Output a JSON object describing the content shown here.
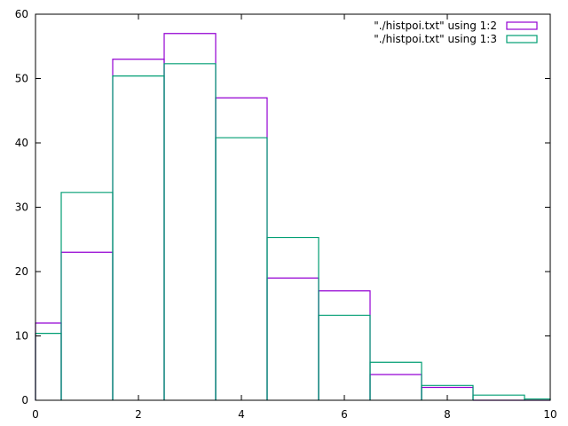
{
  "chart_data": {
    "type": "bar",
    "style": "histogram-steps",
    "xlim": [
      0,
      10
    ],
    "ylim": [
      0,
      60
    ],
    "xticks": [
      0,
      2,
      4,
      6,
      8,
      10
    ],
    "yticks": [
      0,
      10,
      20,
      30,
      40,
      50,
      60
    ],
    "categories": [
      0,
      1,
      2,
      3,
      4,
      5,
      6,
      7,
      8,
      9,
      10
    ],
    "bin_width": 1,
    "grid": false,
    "legend_position": "top-right",
    "series": [
      {
        "name": "\"./histpoi.txt\" using 1:2",
        "color": "#9400d3",
        "values": [
          12,
          23,
          53,
          57,
          47,
          19,
          17,
          4,
          2,
          0,
          0
        ]
      },
      {
        "name": "\"./histpoi.txt\" using 1:3",
        "color": "#009e73",
        "values": [
          10.4,
          32.3,
          50.4,
          52.3,
          40.8,
          25.3,
          13.2,
          5.9,
          2.3,
          0.8,
          0.2
        ]
      }
    ]
  }
}
